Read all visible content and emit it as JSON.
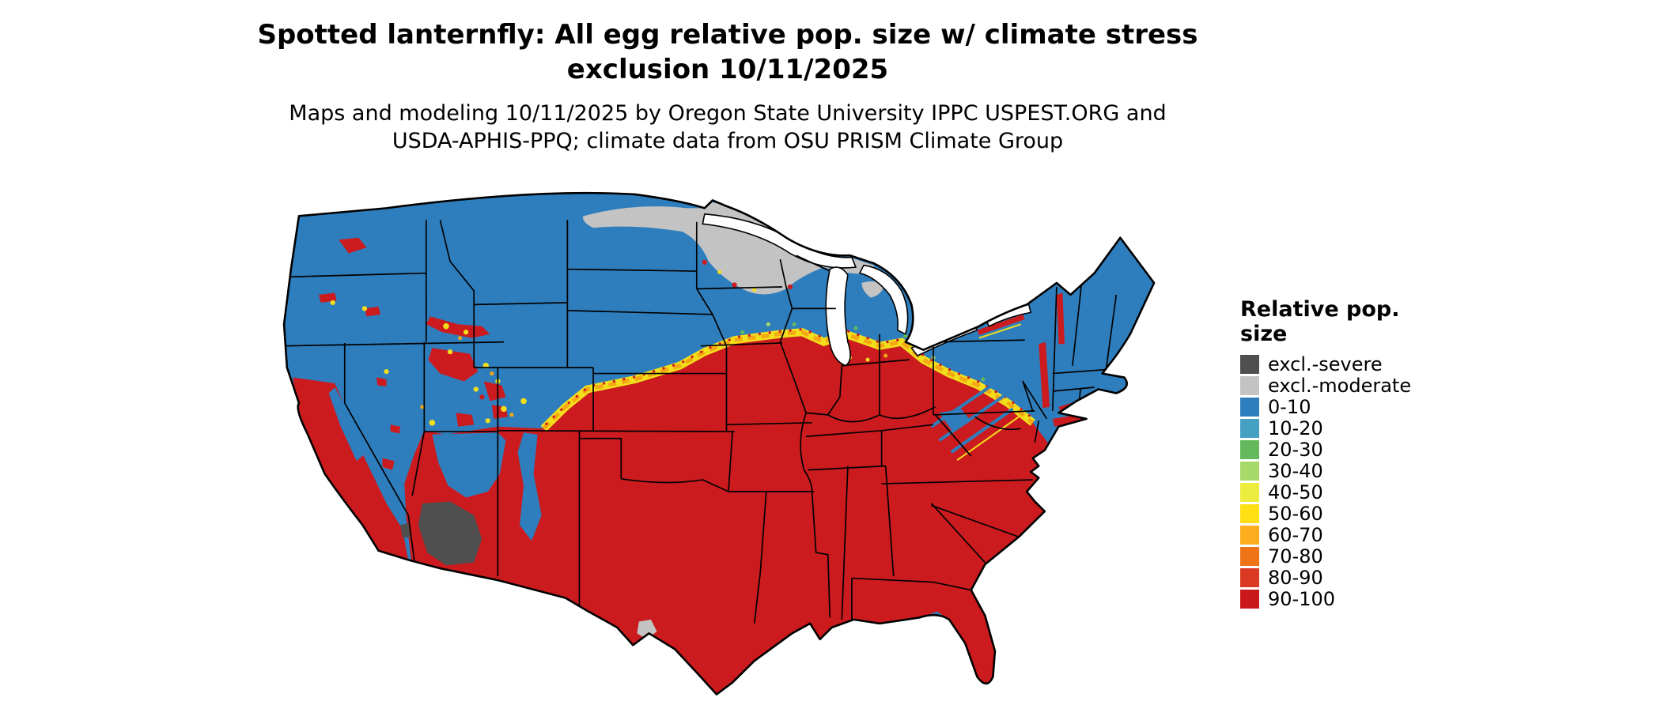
{
  "header": {
    "title_line1": "Spotted lanternfly: All egg relative pop. size w/ climate stress",
    "title_line2": "exclusion 10/11/2025",
    "subtitle_line1": "Maps and modeling 10/11/2025 by Oregon State University IPPC USPEST.ORG and",
    "subtitle_line2": "USDA-APHIS-PPQ; climate data from OSU PRISM Climate Group"
  },
  "legend": {
    "title": "Relative pop. size",
    "entries": [
      {
        "label": "excl.-severe",
        "color": "#4f4f4f"
      },
      {
        "label": "excl.-moderate",
        "color": "#c3c3c3"
      },
      {
        "label": "0-10",
        "color": "#2e7ebd"
      },
      {
        "label": "10-20",
        "color": "#46a0c2"
      },
      {
        "label": "20-30",
        "color": "#63b95c"
      },
      {
        "label": "30-40",
        "color": "#a6d96a"
      },
      {
        "label": "40-50",
        "color": "#eded3f"
      },
      {
        "label": "50-60",
        "color": "#ffe014"
      },
      {
        "label": "60-70",
        "color": "#fcae1e"
      },
      {
        "label": "70-80",
        "color": "#ef7418"
      },
      {
        "label": "80-90",
        "color": "#da3a21"
      },
      {
        "label": "90-100",
        "color": "#cb181d"
      }
    ]
  },
  "map": {
    "colors": {
      "region_low": "#2e7ebd",
      "region_high": "#cb1b1e",
      "transition_yellow": "#f2df1c",
      "transition_orange": "#f5a814",
      "speckle_green": "#63b95c",
      "speckle_light_green": "#a6d96a",
      "excl_moderate": "#c3c3c3",
      "excl_severe": "#4f4f4f",
      "water": "#ffffff",
      "state_border": "#000000"
    }
  }
}
